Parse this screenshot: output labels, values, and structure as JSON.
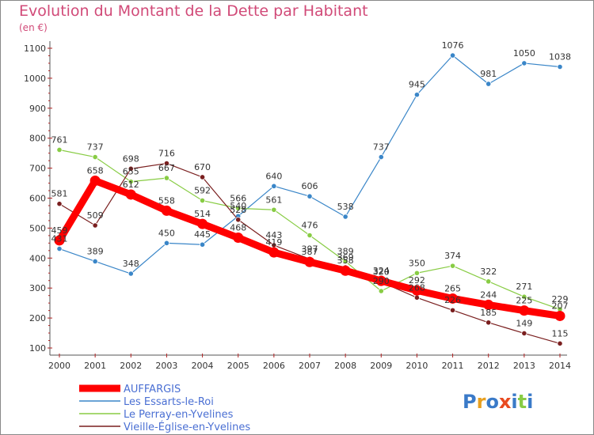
{
  "header": {
    "title": "Evolution du Montant de la Dette par Habitant",
    "subtitle": "(en €)"
  },
  "logo": {
    "text": "Proxiti"
  },
  "chart_data": {
    "type": "line",
    "title": "Evolution du Montant de la Dette par Habitant",
    "subtitle": "(en €)",
    "xlabel": "",
    "ylabel": "",
    "x": [
      "2000",
      "2001",
      "2002",
      "2003",
      "2004",
      "2005",
      "2006",
      "2007",
      "2008",
      "2009",
      "2010",
      "2011",
      "2012",
      "2013",
      "2014"
    ],
    "ylim": [
      100,
      1100
    ],
    "yticks": [
      100,
      200,
      300,
      400,
      500,
      600,
      700,
      800,
      900,
      1000,
      1100
    ],
    "grid": false,
    "legend_position": "bottom-left",
    "series": [
      {
        "name": "AUFFARGIS",
        "color": "#ff0000",
        "values": [
          459,
          658,
          612,
          558,
          514,
          468,
          419,
          387,
          358,
          324,
          292,
          265,
          244,
          225,
          207
        ]
      },
      {
        "name": "Les Essarts-le-Roi",
        "color": "#3a86c8",
        "values": [
          431,
          389,
          348,
          450,
          445,
          540,
          640,
          606,
          538,
          737,
          945,
          1076,
          981,
          1050,
          1038
        ]
      },
      {
        "name": "Le Perray-en-Yvelines",
        "color": "#88cc44",
        "values": [
          761,
          737,
          655,
          667,
          592,
          566,
          561,
          476,
          389,
          290,
          350,
          374,
          322,
          271,
          229
        ]
      },
      {
        "name": "Vieille-Église-en-Yvelines",
        "color": "#7a1f1f",
        "values": [
          581,
          509,
          698,
          716,
          670,
          528,
          443,
          397,
          369,
          320,
          268,
          226,
          185,
          149,
          115
        ]
      }
    ]
  }
}
